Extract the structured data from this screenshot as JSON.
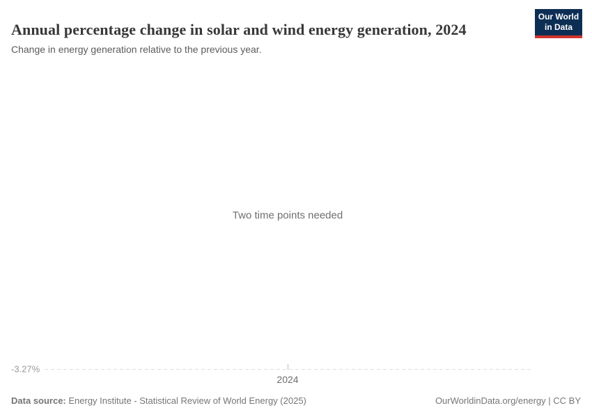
{
  "header": {
    "title": "Annual percentage change in solar and wind energy generation, 2024",
    "subtitle": "Change in energy generation relative to the previous year.",
    "logo": {
      "line1": "Our World",
      "line2": "in Data"
    }
  },
  "chart": {
    "empty_message": "Two time points needed",
    "baseline_label": "-3.27%",
    "x_tick_label": "2024"
  },
  "footer": {
    "source_label": "Data source:",
    "source_text": " Energy Institute - Statistical Review of World Energy (2025)",
    "attribution": "OurWorldinData.org/energy | CC BY"
  },
  "colors": {
    "logo_navy": "#0d2e54",
    "logo_red": "#d0342c",
    "title_text": "#383838",
    "subtitle_text": "#5b5b5b",
    "muted_text": "#6e6e6e",
    "axis_label_text": "#999999",
    "dashed_line": "#dedede",
    "footer_text": "#757575"
  },
  "chart_data": {
    "type": "line",
    "title": "Annual percentage change in solar and wind energy generation, 2024",
    "subtitle": "Change in energy generation relative to the previous year.",
    "empty_state": true,
    "empty_state_message": "Two time points needed",
    "x_tick_labels": [
      "2024"
    ],
    "y_reference_value": -3.27,
    "y_reference_label": "-3.27%",
    "series": [],
    "grid": false,
    "legend_position": "none"
  }
}
